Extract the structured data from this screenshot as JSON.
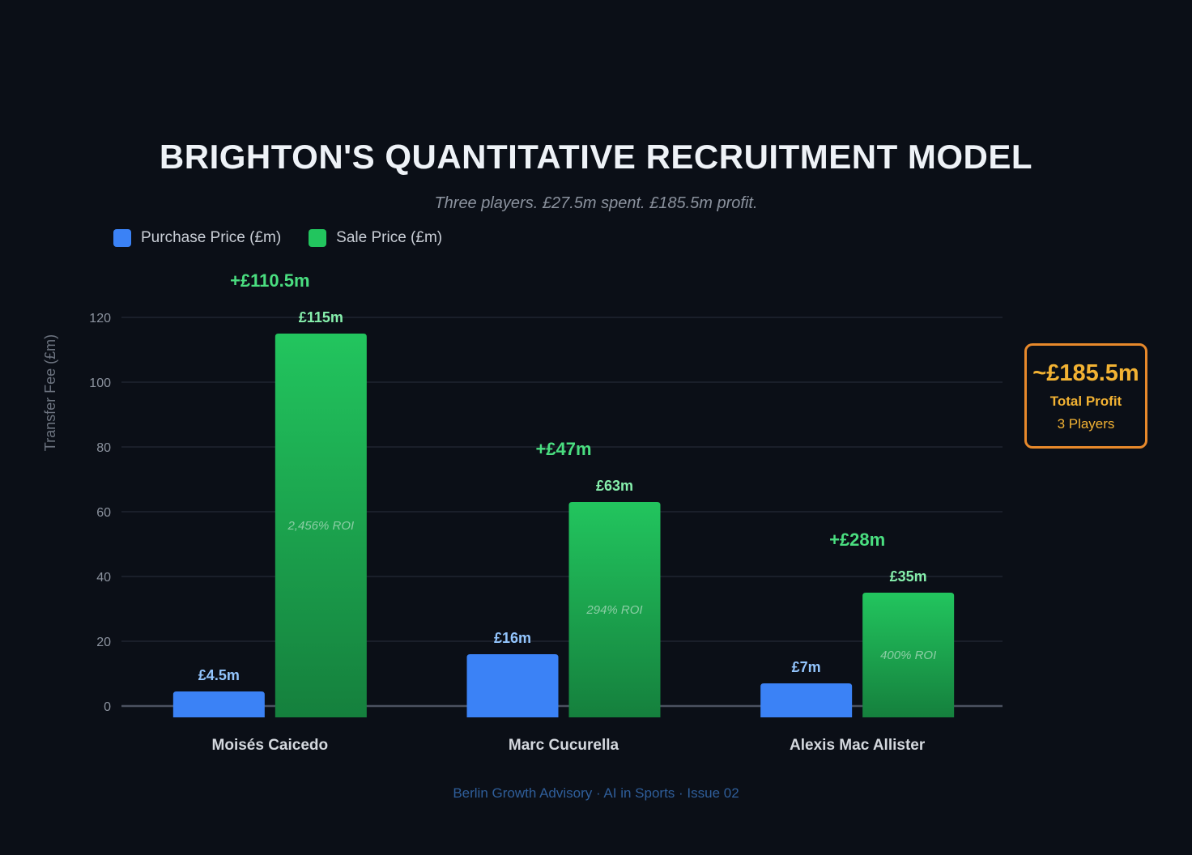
{
  "header": {
    "title": "BRIGHTON'S QUANTITATIVE RECRUITMENT MODEL",
    "subtitle": "Three players. £27.5m spent. £185.5m profit."
  },
  "legend": {
    "purchase_label": "Purchase Price (£m)",
    "sale_label": "Sale Price (£m)"
  },
  "summary": {
    "total": "~£185.5m",
    "label": "Total Profit",
    "count": "3 Players"
  },
  "footer": "Berlin Growth Advisory · AI in Sports · Issue 02",
  "colors": {
    "purchase": "#3b82f6",
    "sale_top": "#22c55e",
    "sale_bottom": "#15803d",
    "profit": "#4ade80",
    "summary_border": "#e8892b",
    "summary_text": "#f2b233"
  },
  "chart_data": {
    "type": "bar",
    "title": "BRIGHTON'S QUANTITATIVE RECRUITMENT MODEL",
    "subtitle": "Three players. £27.5m spent. £185.5m profit.",
    "xlabel": "",
    "ylabel": "Transfer Fee (£m)",
    "ylim": [
      0,
      120
    ],
    "yticks": [
      0,
      20,
      40,
      60,
      80,
      100,
      120
    ],
    "grid": true,
    "legend_position": "top-left",
    "categories": [
      "Moisés Caicedo",
      "Marc Cucurella",
      "Alexis Mac Allister"
    ],
    "series": [
      {
        "name": "Purchase Price (£m)",
        "values": [
          4.5,
          16,
          7
        ],
        "labels": [
          "£4.5m",
          "£16m",
          "£7m"
        ]
      },
      {
        "name": "Sale Price (£m)",
        "values": [
          115,
          63,
          35
        ],
        "labels": [
          "£115m",
          "£63m",
          "£35m"
        ]
      }
    ],
    "profit_labels": [
      "+£110.5m",
      "+£47m",
      "+£28m"
    ],
    "roi_labels": [
      "2,456% ROI",
      "294% ROI",
      "400% ROI"
    ]
  }
}
